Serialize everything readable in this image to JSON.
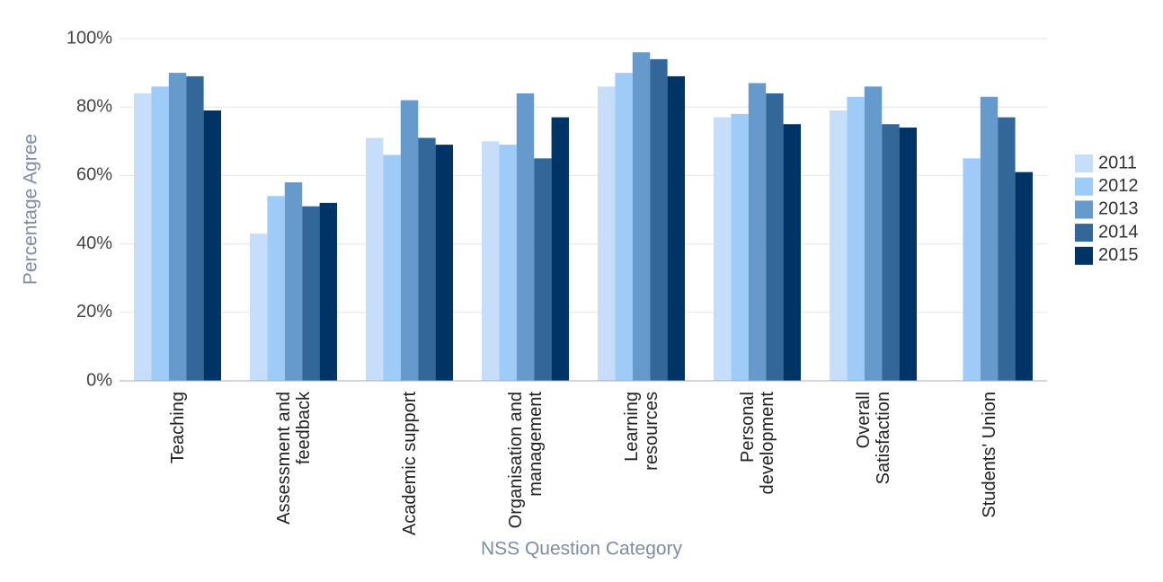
{
  "chart_data": {
    "type": "bar",
    "categories": [
      "Teaching",
      "Assessment and feedback",
      "Academic support",
      "Organisation and management",
      "Learning resources",
      "Personal development",
      "Overall Satisfaction",
      "Students' Union"
    ],
    "series": [
      {
        "name": "2011",
        "color": "#c6defa",
        "values": [
          84,
          43,
          71,
          70,
          86,
          77,
          79,
          null
        ]
      },
      {
        "name": "2012",
        "color": "#9fcbf8",
        "values": [
          86,
          54,
          66,
          69,
          90,
          78,
          83,
          65
        ]
      },
      {
        "name": "2013",
        "color": "#6699cc",
        "values": [
          90,
          58,
          82,
          84,
          96,
          87,
          86,
          83
        ]
      },
      {
        "name": "2014",
        "color": "#336699",
        "values": [
          89,
          51,
          71,
          65,
          94,
          84,
          75,
          77
        ]
      },
      {
        "name": "2015",
        "color": "#003366",
        "values": [
          79,
          52,
          69,
          77,
          89,
          75,
          74,
          61
        ]
      }
    ],
    "x_label": "NSS Question Category",
    "y_label": "Percentage Agree",
    "ylim": [
      0,
      100
    ],
    "yticks": [
      {
        "value": 0,
        "label": "0%"
      },
      {
        "value": 20,
        "label": "20%"
      },
      {
        "value": 40,
        "label": "40%"
      },
      {
        "value": 60,
        "label": "60%"
      },
      {
        "value": 80,
        "label": "80%"
      },
      {
        "value": 100,
        "label": "100%"
      }
    ],
    "grid": true,
    "legend": "right"
  }
}
